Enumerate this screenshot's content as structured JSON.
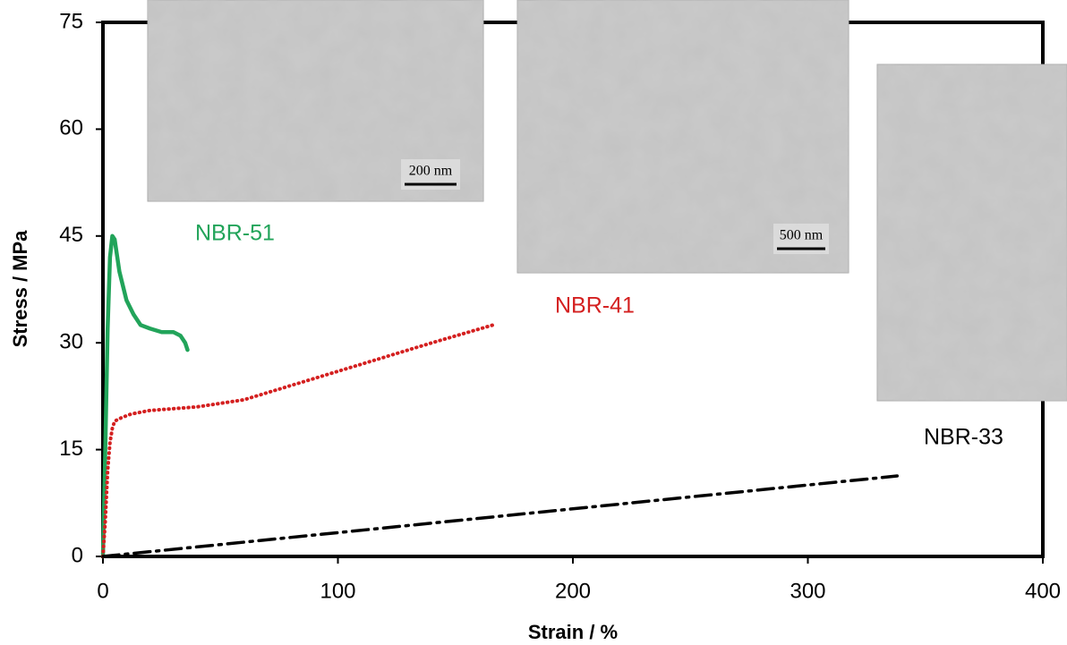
{
  "chart_data": {
    "type": "line",
    "xlabel": "Strain / %",
    "ylabel": "Stress / MPa",
    "xlim": [
      0,
      400
    ],
    "xticks": [
      0,
      100,
      200,
      300,
      400
    ],
    "ylim": [
      0,
      75
    ],
    "yticks": [
      0,
      15,
      30,
      45,
      60,
      75
    ],
    "grid": false,
    "annotations": [
      "200 nm",
      "500 nm"
    ],
    "series": [
      {
        "name": "NBR-51",
        "color": "#22a45a",
        "style": "solid",
        "x": [
          0,
          1,
          2,
          3,
          4,
          5,
          7,
          10,
          13,
          16,
          20,
          25,
          30,
          33,
          35,
          36
        ],
        "values": [
          0,
          15,
          32,
          42,
          45,
          44.5,
          40,
          36,
          34,
          32.5,
          32,
          31.5,
          31.5,
          31,
          30,
          29
        ]
      },
      {
        "name": "NBR-41",
        "color": "#d42020",
        "style": "dotted",
        "x": [
          0,
          1,
          2,
          3,
          4,
          5,
          8,
          12,
          20,
          40,
          60,
          80,
          100,
          120,
          140,
          166
        ],
        "values": [
          0,
          5,
          12,
          16,
          18,
          19,
          19.5,
          20,
          20.5,
          21,
          22,
          24,
          26,
          28,
          30,
          32.5
        ]
      },
      {
        "name": "NBR-33",
        "color": "#000000",
        "style": "dashdot",
        "x": [
          0,
          338
        ],
        "values": [
          0,
          11.3
        ]
      }
    ]
  }
}
